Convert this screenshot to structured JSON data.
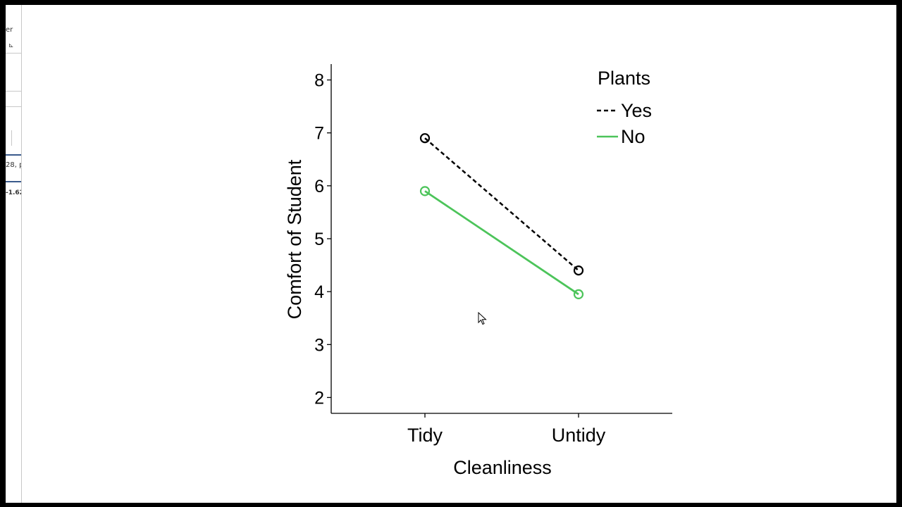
{
  "left_panel": {
    "fragments": [
      "er",
      "⊾",
      "28, p",
      "-1.62"
    ]
  },
  "chart_data": {
    "type": "line",
    "categories": [
      "Tidy",
      "Untidy"
    ],
    "series": [
      {
        "name": "Yes",
        "values": [
          6.9,
          4.4
        ],
        "color": "#000000",
        "dash": "dashed"
      },
      {
        "name": "No",
        "values": [
          5.9,
          3.95
        ],
        "color": "#4cc45a",
        "dash": "solid"
      }
    ],
    "xlabel": "Cleanliness",
    "ylabel": "Comfort of Student",
    "ylim": [
      1.7,
      8.3
    ],
    "yticks": [
      2,
      3,
      4,
      5,
      6,
      7,
      8
    ],
    "legend": {
      "title": "Plants",
      "position": "top-right"
    },
    "grid": false
  }
}
